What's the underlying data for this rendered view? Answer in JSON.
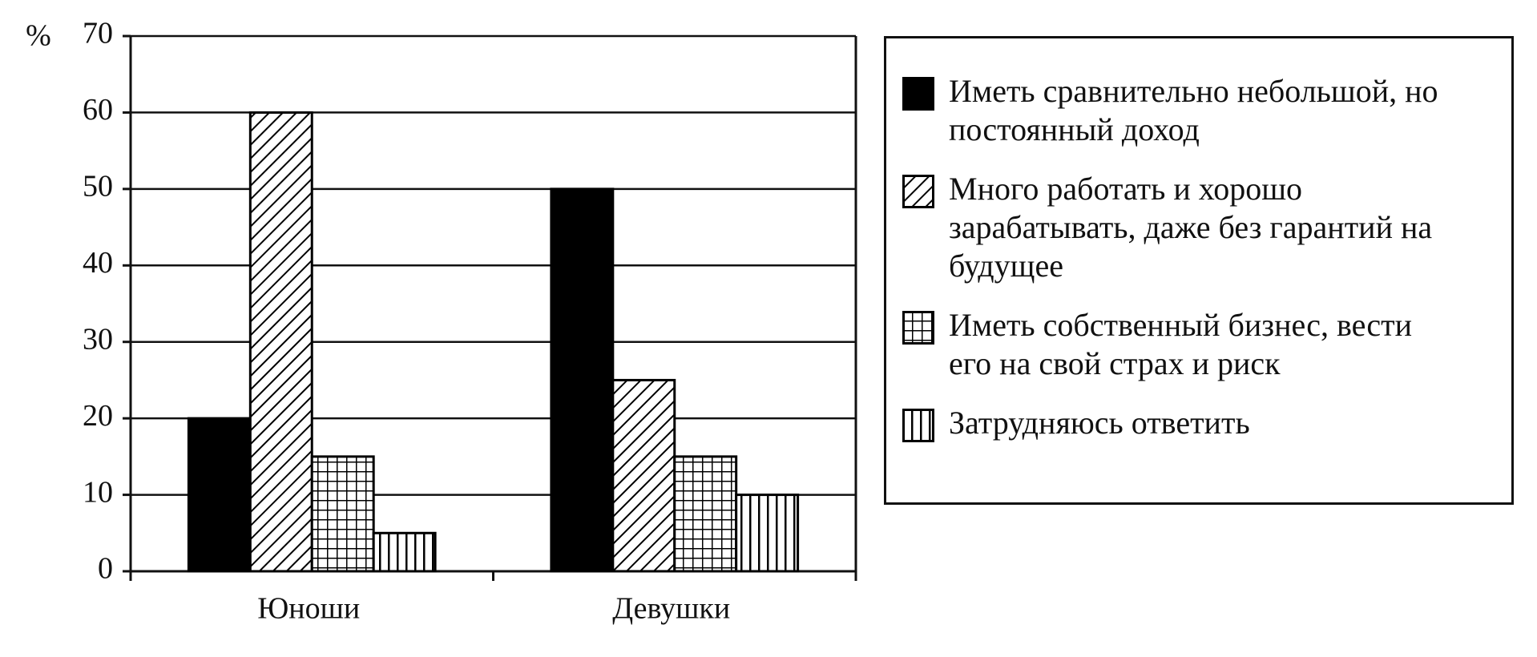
{
  "chart_data": {
    "type": "bar",
    "y_label": "%",
    "categories": [
      "Юноши",
      "Девушки"
    ],
    "series": [
      {
        "name": "Иметь сравнительно небольшой, но постоянный доход",
        "color": "#000000",
        "pattern": "solid",
        "values": [
          20,
          50
        ]
      },
      {
        "name": "Много работать и хорошо зарабатывать, даже без гарантий на будущее",
        "color": "#000000",
        "pattern": "diagonal",
        "values": [
          60,
          25
        ]
      },
      {
        "name": "Иметь собственный бизнес, вести его на свой страх и риск",
        "color": "#000000",
        "pattern": "grid",
        "values": [
          15,
          15
        ]
      },
      {
        "name": "Затрудняюсь ответить",
        "color": "#000000",
        "pattern": "vertical",
        "values": [
          5,
          10
        ]
      }
    ],
    "ylim": [
      0,
      70
    ],
    "yticks": [
      0,
      10,
      20,
      30,
      40,
      50,
      60,
      70
    ],
    "grid": true,
    "legend": "right"
  }
}
